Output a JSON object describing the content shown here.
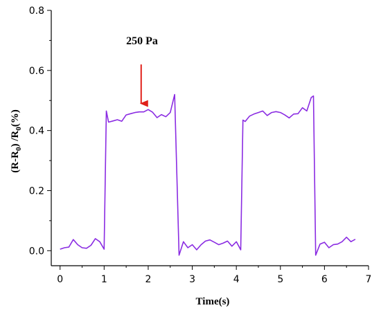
{
  "chart_data": {
    "type": "line",
    "xlabel": "Time(s)",
    "ylabel_parts": [
      "(R-R",
      "0",
      ") /R",
      "0",
      "(%)"
    ],
    "xlim": [
      -0.2,
      7.0
    ],
    "ylim": [
      -0.05,
      0.8
    ],
    "x_ticks": [
      0,
      1,
      2,
      3,
      4,
      5,
      6,
      7
    ],
    "y_ticks": [
      0.0,
      0.2,
      0.4,
      0.6,
      0.8
    ],
    "x_tick_labels": [
      "0",
      "1",
      "2",
      "3",
      "4",
      "5",
      "6",
      "7"
    ],
    "y_tick_labels": [
      "0.0",
      "0.2",
      "0.4",
      "0.6",
      "0.8"
    ],
    "grid": false,
    "line_color": "#8a2be2",
    "annotation": {
      "text": "250 Pa",
      "arrow_color": "#e0201a",
      "arrow_x": 1.84,
      "arrow_y_start": 0.62,
      "arrow_y_end": 0.49
    },
    "series": [
      {
        "x": [
          0.0,
          0.1,
          0.2,
          0.3,
          0.4,
          0.5,
          0.6,
          0.7,
          0.8,
          0.9,
          1.0,
          1.05,
          1.1,
          1.2,
          1.3,
          1.4,
          1.5,
          1.6,
          1.7,
          1.8,
          1.9,
          2.0,
          2.1,
          2.2,
          2.3,
          2.4,
          2.5,
          2.6,
          2.7,
          2.8,
          2.9,
          3.0,
          3.1,
          3.2,
          3.3,
          3.4,
          3.5,
          3.6,
          3.7,
          3.8,
          3.9,
          4.0,
          4.1,
          4.15,
          4.2,
          4.3,
          4.4,
          4.5,
          4.6,
          4.7,
          4.8,
          4.9,
          5.0,
          5.1,
          5.2,
          5.3,
          5.4,
          5.5,
          5.6,
          5.7,
          5.75,
          5.8,
          5.9,
          6.0,
          6.1,
          6.2,
          6.3,
          6.4,
          6.5,
          6.6,
          6.7
        ],
        "y": [
          0.005,
          0.01,
          0.012,
          0.037,
          0.02,
          0.01,
          0.008,
          0.018,
          0.04,
          0.03,
          0.005,
          0.465,
          0.428,
          0.432,
          0.436,
          0.431,
          0.452,
          0.456,
          0.46,
          0.462,
          0.462,
          0.47,
          0.461,
          0.443,
          0.453,
          0.446,
          0.46,
          0.52,
          -0.015,
          0.03,
          0.01,
          0.02,
          0.003,
          0.02,
          0.032,
          0.036,
          0.028,
          0.02,
          0.025,
          0.032,
          0.015,
          0.03,
          0.003,
          0.435,
          0.43,
          0.448,
          0.455,
          0.46,
          0.465,
          0.45,
          0.46,
          0.463,
          0.46,
          0.452,
          0.442,
          0.455,
          0.456,
          0.476,
          0.465,
          0.51,
          0.515,
          -0.015,
          0.022,
          0.028,
          0.01,
          0.02,
          0.022,
          0.03,
          0.045,
          0.03,
          0.038
        ]
      }
    ]
  }
}
